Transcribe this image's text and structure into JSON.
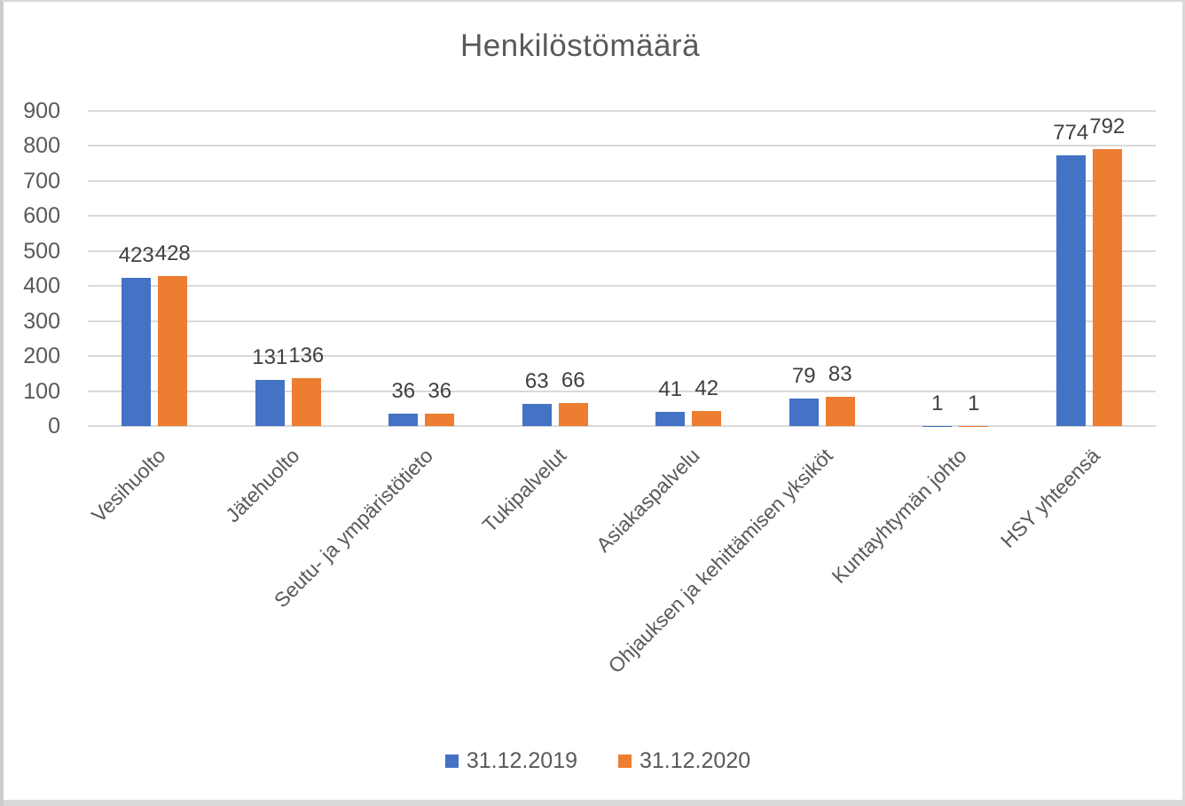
{
  "chart_data": {
    "type": "bar",
    "title": "Henkilöstömäärä",
    "categories": [
      "Vesihuolto",
      "Jätehuolto",
      "Seutu- ja ympäristötieto",
      "Tukipalvelut",
      "Asiakaspalvelu",
      "Ohjauksen ja kehittämisen yksiköt",
      "Kuntayhtymän johto",
      "HSY yhteensä"
    ],
    "series": [
      {
        "name": "31.12.2019",
        "color": "#4472C4",
        "values": [
          423,
          131,
          36,
          63,
          41,
          79,
          1,
          774
        ]
      },
      {
        "name": "31.12.2020",
        "color": "#ED7D31",
        "values": [
          428,
          136,
          36,
          66,
          42,
          83,
          1,
          792
        ]
      }
    ],
    "ylim": [
      0,
      900
    ],
    "yticks": [
      0,
      100,
      200,
      300,
      400,
      500,
      600,
      700,
      800,
      900
    ],
    "grid": true,
    "legend_position": "bottom",
    "data_labels": true,
    "xlabel": "",
    "ylabel": ""
  },
  "colors": {
    "series1": "#4472C4",
    "series2": "#ED7D31",
    "gridline": "#D9D9D9",
    "title_text": "#595959",
    "axis_text": "#595959",
    "data_label_text": "#404040",
    "border": "#D9D9D9"
  }
}
